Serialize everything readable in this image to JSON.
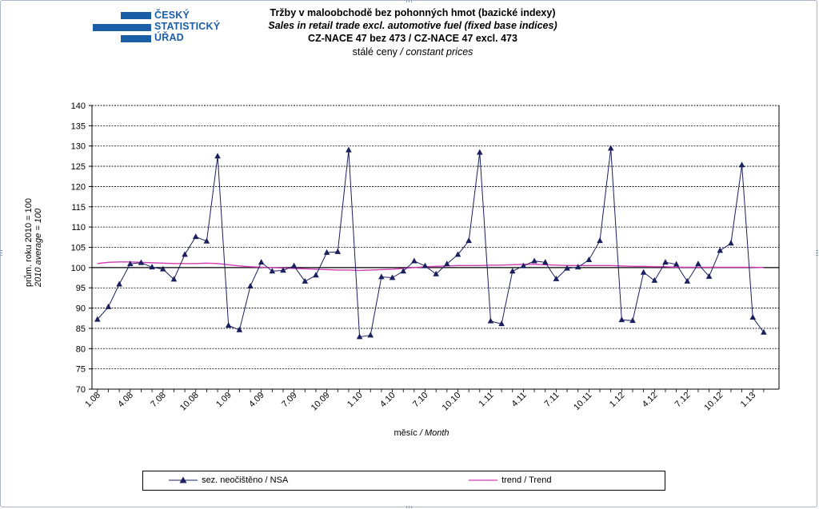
{
  "logo": {
    "lines": [
      "ČESKÝ",
      "STATISTICKÝ",
      "ÚŘAD"
    ],
    "color": "#1b5ea8"
  },
  "header": {
    "title_cz": "Tržby v maloobchodě  bez pohonných  hmot (bazické indexy)",
    "title_en": "Sales in retail trade excl. automotive fuel (fixed base indices)",
    "code": "CZ-NACE  47 bez 473  / CZ-NACE  47 excl.  473",
    "prices_cz": "stálé ceny",
    "prices_en": "/ constant  prices"
  },
  "axes": {
    "ylabel_cz": "prům. roku 2010 = 100",
    "ylabel_en": "2010 average = 100",
    "xlabel_cz": "měsíc",
    "xlabel_en": "/ Month"
  },
  "legend": {
    "nsa": "sez. neočištěno / NSA",
    "trend": "trend / Trend"
  },
  "chart_data": {
    "type": "line",
    "ylim": [
      70,
      140
    ],
    "yticks": [
      70,
      75,
      80,
      85,
      90,
      95,
      100,
      105,
      110,
      115,
      120,
      125,
      130,
      135,
      140
    ],
    "grid": true,
    "legend_position": "bottom",
    "x_tick_labels": [
      "1.08",
      "4.08",
      "7.08",
      "10.08",
      "1.09",
      "4.09",
      "7.09",
      "10.09",
      "1.10",
      "4.10",
      "7.10",
      "10.10",
      "1.11",
      "4.11",
      "7.11",
      "10.11",
      "1.12",
      "4.12",
      "7.12",
      "10.12",
      "1.13"
    ],
    "x": [
      "1.08",
      "2.08",
      "3.08",
      "4.08",
      "5.08",
      "6.08",
      "7.08",
      "8.08",
      "9.08",
      "10.08",
      "11.08",
      "12.08",
      "1.09",
      "2.09",
      "3.09",
      "4.09",
      "5.09",
      "6.09",
      "7.09",
      "8.09",
      "9.09",
      "10.09",
      "11.09",
      "12.09",
      "1.10",
      "2.10",
      "3.10",
      "4.10",
      "5.10",
      "6.10",
      "7.10",
      "8.10",
      "9.10",
      "10.10",
      "11.10",
      "12.10",
      "1.11",
      "2.11",
      "3.11",
      "4.11",
      "5.11",
      "6.11",
      "7.11",
      "8.11",
      "9.11",
      "10.11",
      "11.11",
      "12.11",
      "1.12",
      "2.12",
      "3.12",
      "4.12",
      "5.12",
      "6.12",
      "7.12",
      "8.12",
      "9.12",
      "10.12",
      "11.12",
      "12.12",
      "1.13",
      "2.13"
    ],
    "series": [
      {
        "name": "sez. neočištěno / NSA",
        "color": "#1a1f5e",
        "marker": "triangle",
        "values": [
          87.2,
          90.3,
          95.9,
          100.9,
          101.2,
          100.1,
          99.6,
          97.1,
          103.2,
          107.6,
          106.5,
          127.5,
          85.7,
          84.6,
          95.4,
          101.3,
          99.1,
          99.3,
          100.4,
          96.6,
          98.1,
          103.7,
          103.9,
          129.0,
          82.9,
          83.3,
          97.7,
          97.5,
          99.1,
          101.6,
          100.4,
          98.4,
          100.9,
          103.2,
          106.6,
          128.4,
          86.8,
          86.1,
          99.1,
          100.4,
          101.6,
          101.3,
          97.2,
          99.8,
          100.1,
          101.9,
          106.6,
          129.4,
          87.1,
          86.9,
          98.8,
          96.8,
          101.3,
          100.8,
          96.6,
          100.9,
          97.8,
          104.2,
          106.0,
          125.3,
          87.7,
          84.0
        ]
      },
      {
        "name": "trend / Trend",
        "color": "#d23ab8",
        "values": [
          101.0,
          101.3,
          101.4,
          101.4,
          101.3,
          101.2,
          101.1,
          101.0,
          101.0,
          101.0,
          101.1,
          101.0,
          100.7,
          100.4,
          100.2,
          100.1,
          100.0,
          99.9,
          99.8,
          99.7,
          99.6,
          99.5,
          99.4,
          99.4,
          99.3,
          99.4,
          99.5,
          99.6,
          99.8,
          100.0,
          100.2,
          100.3,
          100.4,
          100.5,
          100.5,
          100.5,
          100.6,
          100.6,
          100.7,
          100.8,
          100.8,
          100.7,
          100.6,
          100.5,
          100.5,
          100.5,
          100.5,
          100.5,
          100.4,
          100.3,
          100.3,
          100.2,
          100.2,
          100.1,
          100.1,
          100.1,
          100.1,
          100.1,
          100.1,
          100.1,
          100.1,
          100.0
        ]
      }
    ]
  }
}
